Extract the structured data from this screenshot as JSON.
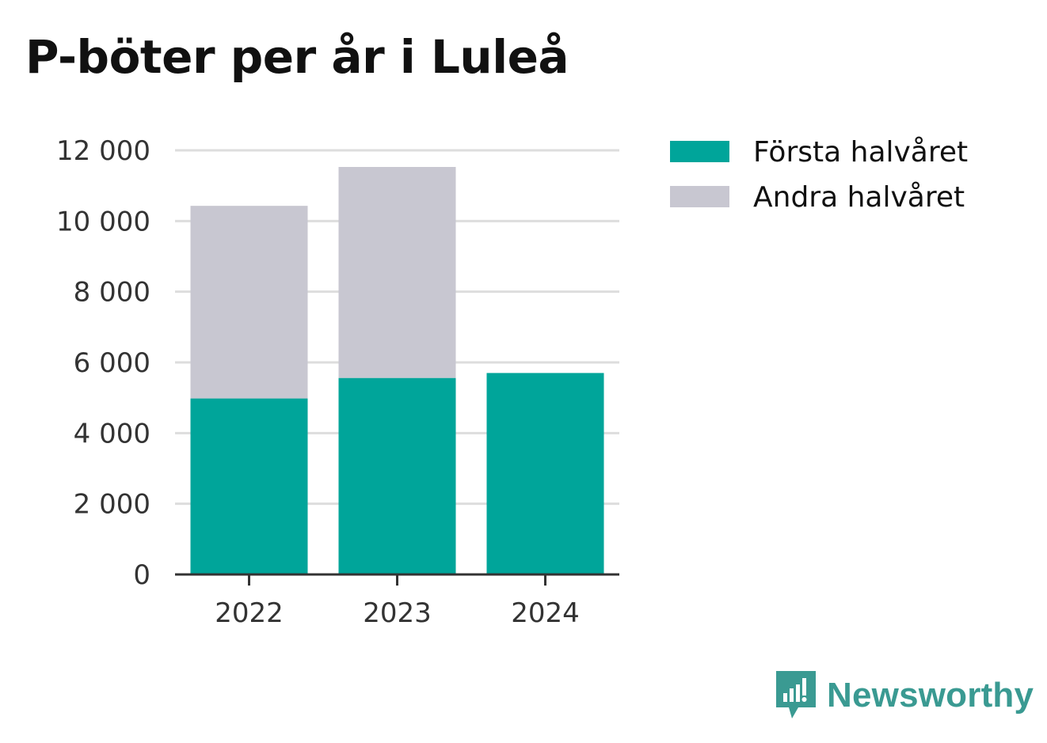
{
  "title": "P-böter per år i Luleå",
  "brand": {
    "name": "Newsworthy",
    "icon": "newsworthy-logo-icon",
    "color": "#3a9a92"
  },
  "chart_data": {
    "type": "bar",
    "stacked": true,
    "title": "P-böter per år i Luleå",
    "categories": [
      "2022",
      "2023",
      "2024"
    ],
    "series": [
      {
        "name": "Första halvåret",
        "color": "#00a59a",
        "values": [
          4980,
          5560,
          5700
        ]
      },
      {
        "name": "Andra halvåret",
        "color": "#c8c7d1",
        "values": [
          5450,
          5970,
          null
        ]
      }
    ],
    "xlabel": "",
    "ylabel": "",
    "ylim": [
      0,
      12000
    ],
    "yticks": [
      0,
      2000,
      4000,
      6000,
      8000,
      10000,
      12000
    ],
    "ytick_labels": [
      "0",
      "2 000",
      "4 000",
      "6 000",
      "8 000",
      "10 000",
      "12 000"
    ],
    "grid": true,
    "legend": "top-right"
  }
}
